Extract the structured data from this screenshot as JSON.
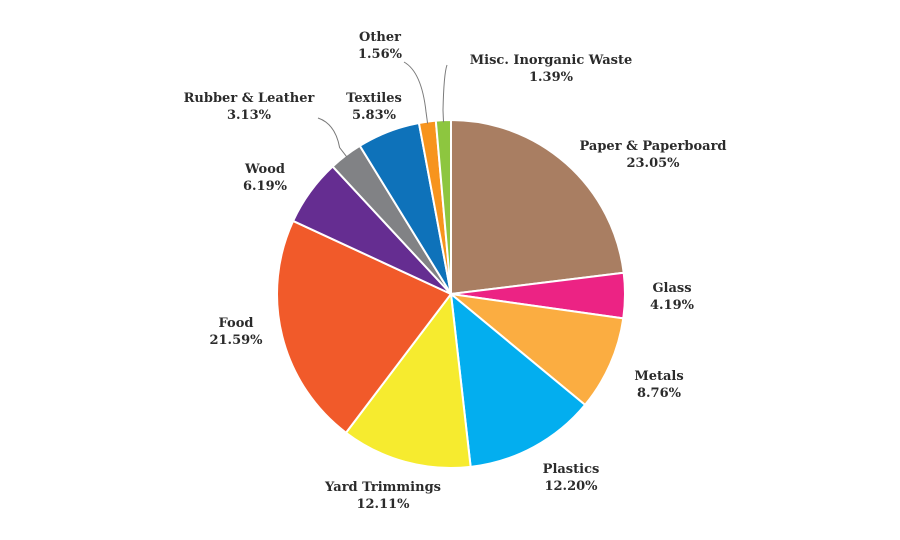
{
  "chart_data": {
    "type": "pie",
    "start_angle_deg": 0,
    "direction": "clockwise",
    "slice_border_color": "#ffffff",
    "slices": [
      {
        "label": "Paper & Paperboard",
        "value": 23.05,
        "value_text": "23.05%",
        "color": "#A97E62"
      },
      {
        "label": "Glass",
        "value": 4.19,
        "value_text": "4.19%",
        "color": "#EC2384"
      },
      {
        "label": "Metals",
        "value": 8.76,
        "value_text": "8.76%",
        "color": "#FBAD41"
      },
      {
        "label": "Plastics",
        "value": 12.2,
        "value_text": "12.20%",
        "color": "#03AEEF"
      },
      {
        "label": "Yard Trimmings",
        "value": 12.11,
        "value_text": "12.11%",
        "color": "#F6EB2F"
      },
      {
        "label": "Food",
        "value": 21.59,
        "value_text": "21.59%",
        "color": "#F15A2A"
      },
      {
        "label": "Wood",
        "value": 6.19,
        "value_text": "6.19%",
        "color": "#652D91"
      },
      {
        "label": "Rubber & Leather",
        "value": 3.13,
        "value_text": "3.13%",
        "color": "#818285"
      },
      {
        "label": "Textiles",
        "value": 5.83,
        "value_text": "5.83%",
        "color": "#0E72BA"
      },
      {
        "label": "Other",
        "value": 1.56,
        "value_text": "1.56%",
        "color": "#F7941D"
      },
      {
        "label": "Misc. Inorganic Waste",
        "value": 1.39,
        "value_text": "1.39%",
        "color": "#8DC63F"
      }
    ]
  }
}
